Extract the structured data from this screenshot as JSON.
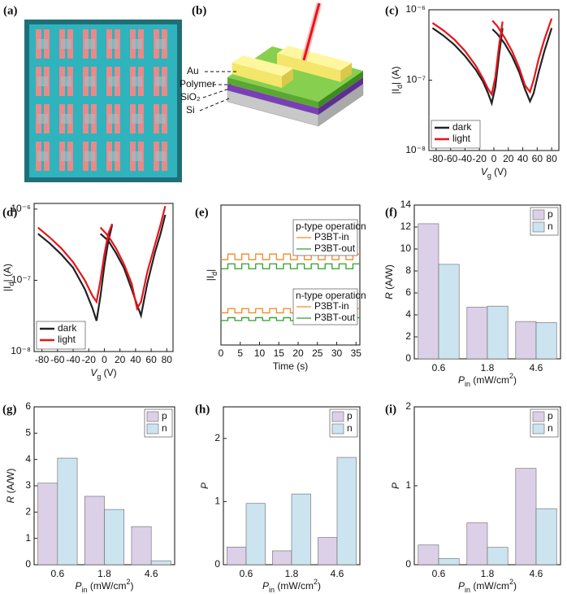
{
  "image_panel": {
    "label": "(a)"
  },
  "diagram_panel": {
    "label": "(b)",
    "layers": [
      "Au",
      "Polymer",
      "SiO₂",
      "Si"
    ]
  },
  "chart_data": [
    {
      "type": "line",
      "label": "(c)",
      "xlabel": [
        {
          "italic": "V"
        },
        {
          "sub": "g"
        },
        " (V)"
      ],
      "ylabel": [
        "|I",
        {
          "sub": "d"
        },
        "| (A)"
      ],
      "yscale": "log",
      "xlim": [
        -90,
        90
      ],
      "ylim": [
        1e-08,
        1e-06
      ],
      "xticks": [
        -80,
        -60,
        -40,
        -20,
        0,
        20,
        40,
        60,
        80
      ],
      "yticks": [
        {
          "value": 1e-08,
          "label": "10⁻⁸"
        },
        {
          "value": 1e-07,
          "label": "10⁻⁷"
        },
        {
          "value": 1e-06,
          "label": "10⁻⁶"
        }
      ],
      "legend_loc": "lower left",
      "x": [
        -85,
        -70,
        -55,
        -40,
        -25,
        -15,
        -8,
        -3,
        2,
        7,
        12,
        null,
        -2,
        5,
        15,
        25,
        35,
        43,
        50,
        55,
        62,
        70,
        80
      ],
      "series": [
        {
          "name": "dark",
          "color": "#222222",
          "values": [
            5.5e-07,
            4.3e-07,
            3.2e-07,
            2.2e-07,
            1.4e-07,
            9.5e-08,
            6.5e-08,
            4.7e-08,
            8e-08,
            2.2e-07,
            5.5e-07,
            null,
            5.3e-07,
            4.5e-07,
            3.3e-07,
            2.2e-07,
            1.3e-07,
            7.5e-08,
            5e-08,
            6.5e-08,
            1.3e-07,
            2.6e-07,
            5.5e-07
          ]
        },
        {
          "name": "light",
          "color": "#e8141b",
          "values": [
            6.5e-07,
            5.1e-07,
            3.8e-07,
            2.6e-07,
            1.6e-07,
            1.05e-07,
            7.5e-08,
            6.3e-08,
            1.1e-07,
            3e-07,
            6.8e-07,
            null,
            7e-07,
            5.8e-07,
            4e-07,
            2.6e-07,
            1.5e-07,
            8.5e-08,
            6.8e-08,
            1e-07,
            2e-07,
            3.8e-07,
            7.5e-07
          ]
        }
      ]
    },
    {
      "type": "line",
      "label": "(d)",
      "xlabel": [
        {
          "italic": "V"
        },
        {
          "sub": "g"
        },
        " (V)"
      ],
      "ylabel": [
        "|I",
        {
          "sub": "d"
        },
        "| (A)"
      ],
      "yscale": "log",
      "xlim": [
        -90,
        88
      ],
      "ylim": [
        1e-08,
        1.2e-06
      ],
      "xticks": [
        -80,
        -60,
        -40,
        -20,
        0,
        20,
        40,
        60,
        80
      ],
      "yticks": [
        {
          "value": 1e-08,
          "label": "10⁻⁸"
        },
        {
          "value": 1e-07,
          "label": "10⁻⁷"
        },
        {
          "value": 1e-06,
          "label": "10⁻⁶"
        }
      ],
      "legend_loc": "lower left",
      "x": [
        -85,
        -70,
        -55,
        -40,
        -25,
        -15,
        -10,
        -5,
        0,
        5,
        10,
        null,
        -5,
        5,
        15,
        25,
        35,
        42,
        47,
        55,
        65,
        72,
        78
      ],
      "series": [
        {
          "name": "dark",
          "color": "#222222",
          "values": [
            4.5e-07,
            3.3e-07,
            2.3e-07,
            1.5e-07,
            7.5e-08,
            4e-08,
            2.7e-08,
            6e-08,
            1.6e-07,
            3.5e-07,
            6e-07,
            null,
            4.5e-07,
            3.6e-07,
            2.4e-07,
            1.5e-07,
            7.5e-08,
            4.5e-08,
            3.2e-08,
            9e-08,
            2.5e-07,
            4.5e-07,
            8.3e-07
          ]
        },
        {
          "name": "light",
          "color": "#e8141b",
          "values": [
            5.5e-07,
            4e-07,
            2.8e-07,
            1.8e-07,
            1e-07,
            6e-08,
            5e-08,
            1e-07,
            2.3e-07,
            4.5e-07,
            6.2e-07,
            null,
            5.5e-07,
            4.2e-07,
            2.8e-07,
            1.7e-07,
            9e-08,
            4e-08,
            5e-08,
            1.3e-07,
            3.2e-07,
            6e-07,
            1.1e-06
          ]
        }
      ]
    },
    {
      "type": "line",
      "label": "(e)",
      "xlabel": "Time (s)",
      "ylabel": [
        "|I",
        {
          "sub": "d"
        },
        "|"
      ],
      "xlim": [
        0,
        36
      ],
      "ylim": [
        0,
        10
      ],
      "xticks": [
        0,
        5,
        10,
        15,
        20,
        25,
        30,
        35
      ],
      "x": [
        0,
        1.8,
        1.8,
        3.6,
        3.6,
        5.4,
        5.4,
        7.2,
        7.2,
        9,
        9,
        10.8,
        10.8,
        12.6,
        12.6,
        14.4,
        14.4,
        16.2,
        16.2,
        18,
        18,
        19.8,
        19.8,
        21.6,
        21.6,
        23.4,
        23.4,
        25.2,
        25.2,
        27,
        27,
        28.8,
        28.8,
        30.6,
        30.6,
        32.4,
        32.4,
        34.2,
        34.2,
        36
      ],
      "series_groups": [
        {
          "title": "p-type operation",
          "series": [
            {
              "name": "P3BT-in",
              "color": "#f08a24",
              "values": [
                6.1,
                6.1,
                6.5,
                6.5,
                6.1,
                6.1,
                6.5,
                6.5,
                6.1,
                6.1,
                6.5,
                6.5,
                6.1,
                6.1,
                6.5,
                6.5,
                6.1,
                6.1,
                6.5,
                6.5,
                6.1,
                6.1,
                6.5,
                6.5,
                6.1,
                6.1,
                6.5,
                6.5,
                6.1,
                6.1,
                6.5,
                6.5,
                6.1,
                6.1,
                6.5,
                6.5,
                6.1,
                6.1,
                6.5,
                6.5
              ]
            },
            {
              "name": "P3BT-out",
              "color": "#2ca02c",
              "values": [
                5.45,
                5.45,
                5.8,
                5.8,
                5.45,
                5.45,
                5.8,
                5.8,
                5.45,
                5.45,
                5.8,
                5.8,
                5.45,
                5.45,
                5.8,
                5.8,
                5.45,
                5.45,
                5.8,
                5.8,
                5.45,
                5.45,
                5.8,
                5.8,
                5.45,
                5.45,
                5.8,
                5.8,
                5.45,
                5.45,
                5.8,
                5.8,
                5.45,
                5.45,
                5.8,
                5.8,
                5.45,
                5.45,
                5.8,
                5.8
              ]
            }
          ]
        },
        {
          "title": "n-type operation",
          "series": [
            {
              "name": "P3BT-in",
              "color": "#f08a24",
              "values": [
                2.3,
                2.3,
                2.6,
                2.6,
                2.3,
                2.3,
                2.6,
                2.6,
                2.3,
                2.3,
                2.6,
                2.6,
                2.3,
                2.3,
                2.6,
                2.6,
                2.3,
                2.3,
                2.6,
                2.6,
                2.3,
                2.3,
                2.6,
                2.6,
                2.3,
                2.3,
                2.6,
                2.6,
                2.3,
                2.3,
                2.6,
                2.6,
                2.3,
                2.3,
                2.6,
                2.6,
                2.3,
                2.3,
                2.6,
                2.6
              ]
            },
            {
              "name": "P3BT-out",
              "color": "#2ca02c",
              "values": [
                1.75,
                1.75,
                1.95,
                1.95,
                1.75,
                1.75,
                1.95,
                1.95,
                1.75,
                1.75,
                1.95,
                1.95,
                1.75,
                1.75,
                1.95,
                1.95,
                1.75,
                1.75,
                1.95,
                1.95,
                1.75,
                1.75,
                1.95,
                1.95,
                1.75,
                1.75,
                1.95,
                1.95,
                1.75,
                1.75,
                1.95,
                1.95,
                1.75,
                1.75,
                1.95,
                1.95,
                1.75,
                1.75,
                1.95,
                1.95
              ]
            }
          ]
        }
      ]
    },
    {
      "type": "bar",
      "label": "(f)",
      "categories": [
        "0.6",
        "1.8",
        "4.6"
      ],
      "xlabel": [
        {
          "italic": "P"
        },
        {
          "sub": "in"
        },
        " (mW/cm",
        {
          "sup": "2"
        },
        ")"
      ],
      "ylabel": [
        {
          "italic": "R"
        },
        " (A/W)"
      ],
      "ylim": [
        0,
        14
      ],
      "yticks": [
        0,
        2,
        4,
        6,
        8,
        10,
        12,
        14
      ],
      "legend_loc": "upper right",
      "series": [
        {
          "name": "p",
          "color": "#dcd0e8",
          "values": [
            12.3,
            4.7,
            3.4
          ]
        },
        {
          "name": "n",
          "color": "#cce4ef",
          "values": [
            8.6,
            4.8,
            3.3
          ]
        }
      ]
    },
    {
      "type": "bar",
      "label": "(g)",
      "categories": [
        "0.6",
        "1.8",
        "4.6"
      ],
      "xlabel": [
        {
          "italic": "P"
        },
        {
          "sub": "in"
        },
        " (mW/cm",
        {
          "sup": "2"
        },
        ")"
      ],
      "ylabel": [
        {
          "italic": "R"
        },
        " (A/W)"
      ],
      "ylim": [
        0,
        6
      ],
      "yticks": [
        0,
        1,
        2,
        3,
        4,
        5,
        6
      ],
      "legend_loc": "upper right",
      "series": [
        {
          "name": "p",
          "color": "#dcd0e8",
          "values": [
            3.1,
            2.6,
            1.45
          ]
        },
        {
          "name": "n",
          "color": "#cce4ef",
          "values": [
            4.05,
            2.1,
            0.15
          ]
        }
      ]
    },
    {
      "type": "bar",
      "label": "(h)",
      "categories": [
        "0.6",
        "1.8",
        "4.6"
      ],
      "xlabel": [
        {
          "italic": "P"
        },
        {
          "sub": "in"
        },
        " (mW/cm",
        {
          "sup": "2"
        },
        ")"
      ],
      "ylabel": [
        {
          "italic": "P"
        }
      ],
      "ylim": [
        0,
        2.5
      ],
      "yticks": [
        0,
        1,
        2
      ],
      "legend_loc": "upper right",
      "series": [
        {
          "name": "p",
          "color": "#dcd0e8",
          "values": [
            0.28,
            0.22,
            0.43
          ]
        },
        {
          "name": "n",
          "color": "#cce4ef",
          "values": [
            0.97,
            1.12,
            1.7
          ]
        }
      ]
    },
    {
      "type": "bar",
      "label": "(i)",
      "categories": [
        "0.6",
        "1.8",
        "4.6"
      ],
      "xlabel": [
        {
          "italic": "P"
        },
        {
          "sub": "in"
        },
        " (mW/cm",
        {
          "sup": "2"
        },
        ")"
      ],
      "ylabel": [
        {
          "italic": "P"
        }
      ],
      "ylim": [
        0,
        2
      ],
      "yticks": [
        0,
        1,
        2
      ],
      "legend_loc": "upper right",
      "series": [
        {
          "name": "p",
          "color": "#dcd0e8",
          "values": [
            0.25,
            0.53,
            1.22
          ]
        },
        {
          "name": "n",
          "color": "#cce4ef",
          "values": [
            0.08,
            0.22,
            0.71
          ]
        }
      ]
    }
  ]
}
